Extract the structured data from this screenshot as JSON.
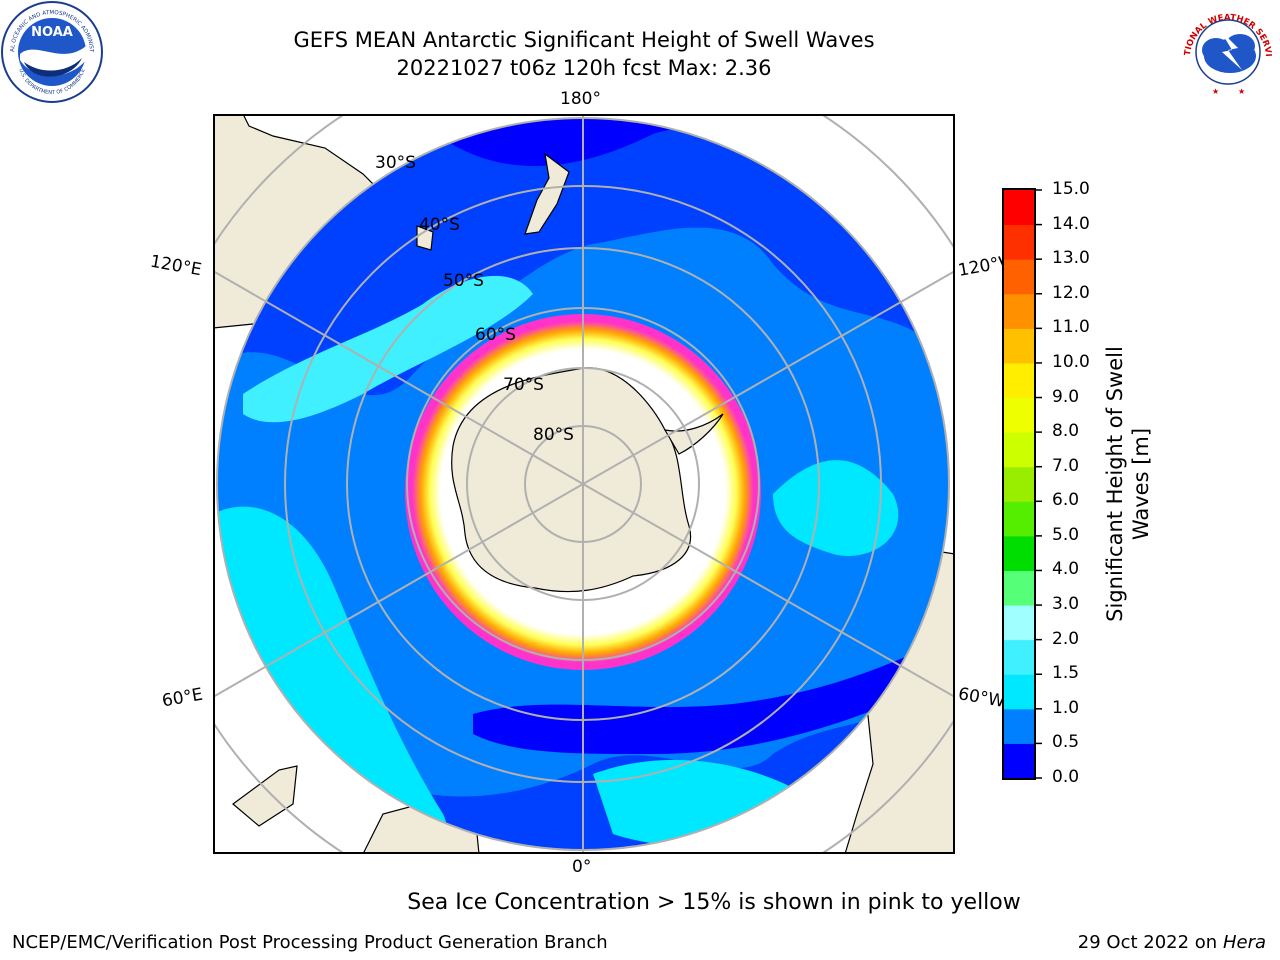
{
  "header": {
    "title_line1": "GEFS MEAN Antarctic Significant Height of Swell Waves",
    "title_line2": "20221027 t06z 120h fcst   Max: 2.36"
  },
  "logos": {
    "noaa": {
      "center_text": "NOAA",
      "ring_text": "NATIONAL OCEANIC AND ATMOSPHERIC ADMINISTRATION",
      "ring_text_bottom": "U.S. DEPARTMENT OF COMMERCE"
    },
    "nws": {
      "ring_text": "NATIONAL WEATHER SERVICE"
    }
  },
  "map": {
    "longitude_labels": {
      "top": "180°",
      "bottom": "0°",
      "upper_left": "120°E",
      "upper_right": "120°W",
      "lower_left": "60°E",
      "lower_right": "60°W"
    },
    "latitude_labels": [
      "30°S",
      "40°S",
      "50°S",
      "60°S",
      "70°S",
      "80°S"
    ],
    "colors": {
      "land": "#efebd8",
      "ice_interior": "#ffffff",
      "ice_edge": [
        "#ff33cc",
        "#ffa500",
        "#ffff55"
      ],
      "graticule": "#b0b0b0"
    }
  },
  "colorbar": {
    "ticks": [
      "0.0",
      "0.5",
      "1.0",
      "1.5",
      "2.0",
      "3.0",
      "4.0",
      "5.0",
      "6.0",
      "7.0",
      "8.0",
      "9.0",
      "10.0",
      "11.0",
      "12.0",
      "13.0",
      "14.0",
      "15.0"
    ],
    "colors": [
      "#0000ff",
      "#0080ff",
      "#00e8ff",
      "#40f0ff",
      "#a0ffff",
      "#55ff77",
      "#00dd00",
      "#55ee00",
      "#99ee00",
      "#ccff00",
      "#eeff00",
      "#ffee00",
      "#ffc000",
      "#ff9000",
      "#ff6000",
      "#ff3000",
      "#ff0000"
    ],
    "label": "Significant Height of Swell Waves [m]"
  },
  "note": "Sea Ice Concentration > 15% is shown in pink to yellow",
  "footer": {
    "left": "NCEP/EMC/Verification Post Processing Product Generation Branch",
    "right_prefix": "29 Oct 2022 on ",
    "right_host": "Hera"
  }
}
